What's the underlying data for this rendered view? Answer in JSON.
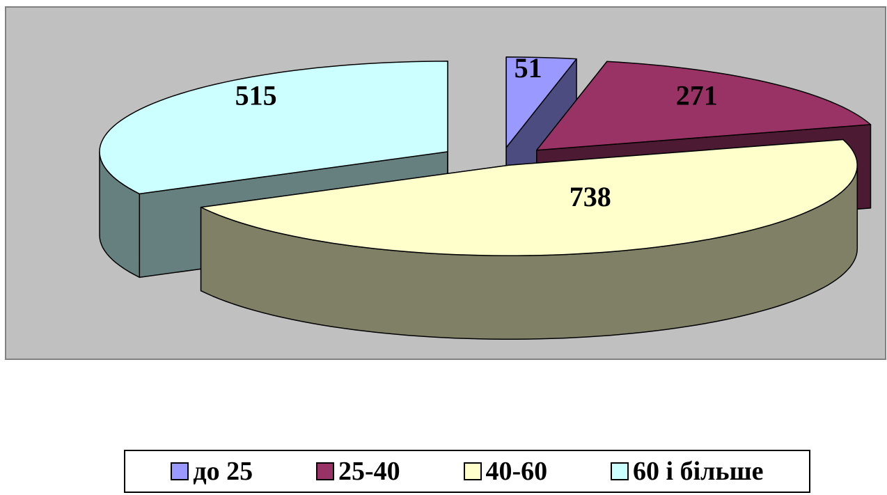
{
  "chart_data": {
    "type": "pie",
    "style": "3d-exploded",
    "title": "",
    "categories": [
      "до 25",
      "25-40",
      "40-60",
      "60 і більше"
    ],
    "values": [
      51,
      271,
      738,
      515
    ],
    "colors": [
      "#9999ff",
      "#993366",
      "#ffffcc",
      "#ccffff"
    ],
    "side_colors": [
      "#4c4c80",
      "#4d1a33",
      "#808066",
      "#668080"
    ],
    "plot_area_color": "#c0c0c0",
    "legend_position": "bottom",
    "data_labels": [
      "51",
      "271",
      "738",
      "515"
    ]
  }
}
